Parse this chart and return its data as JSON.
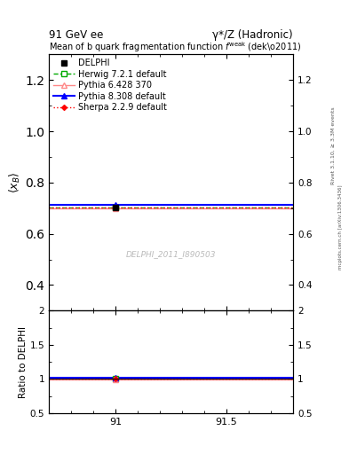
{
  "title_top_left": "91 GeV ee",
  "title_top_right": "γ*/Z (Hadronic)",
  "plot_title": "Mean of b quark fragmentation function $f^{weak}$ (dekø2011)",
  "ylabel_main": "$\\langle x_B \\rangle$",
  "ylabel_ratio": "Ratio to DELPHI",
  "watermark": "DELPHI_2011_I890503",
  "rivet_label": "Rivet 3.1.10, ≥ 3.3M events",
  "arxiv_label": "mcplots.cern.ch [arXiv:1306.3436]",
  "xlim": [
    90.7,
    91.8
  ],
  "ylim_main": [
    0.3,
    1.3
  ],
  "ylim_ratio": [
    0.5,
    2.0
  ],
  "yticks_main": [
    0.4,
    0.6,
    0.8,
    1.0,
    1.2
  ],
  "yticks_ratio": [
    0.5,
    1.0,
    1.5,
    2.0
  ],
  "xticks": [
    91.0,
    91.5
  ],
  "data_x": 91.0,
  "data_y": 0.7037,
  "data_yerr": 0.003,
  "herwig_y": 0.703,
  "pythia6_y": 0.7005,
  "pythia8_y": 0.7125,
  "sherpa_y": 0.703,
  "herwig_color": "#00aa00",
  "pythia6_color": "#ff8888",
  "pythia8_color": "#0000ff",
  "sherpa_color": "#ff0000",
  "data_color": "#000000",
  "legend_entries": [
    "DELPHI",
    "Herwig 7.2.1 default",
    "Pythia 6.428 370",
    "Pythia 8.308 default",
    "Sherpa 2.2.9 default"
  ],
  "bg_color": "#ffffff"
}
